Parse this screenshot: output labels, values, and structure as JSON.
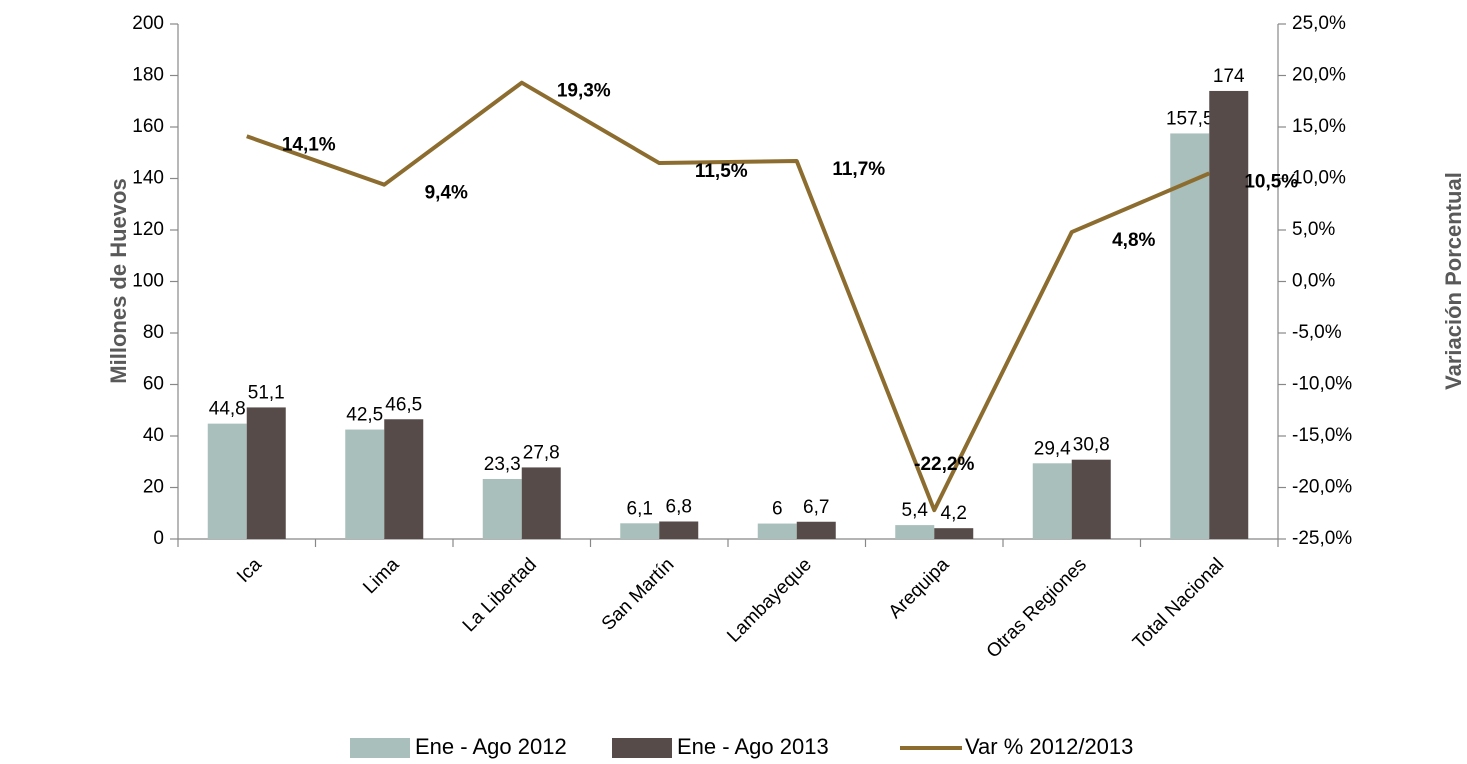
{
  "chart_data": {
    "type": "bar-line",
    "categories": [
      "Ica",
      "Lima",
      "La Libertad",
      "San Martín",
      "Lambayeque",
      "Arequipa",
      "Otras Regiones",
      "Total Nacional"
    ],
    "y_label": "Millones de Huevos",
    "y2_label": "Variación Porcentual",
    "ylim": [
      0,
      200
    ],
    "yticks": [
      0,
      20,
      40,
      60,
      80,
      100,
      120,
      140,
      160,
      180,
      200
    ],
    "y2lim": [
      -25,
      25
    ],
    "y2ticks": [
      {
        "value": -25,
        "label": "-25,0%"
      },
      {
        "value": -20,
        "label": "-20,0%"
      },
      {
        "value": -15,
        "label": "-15,0%"
      },
      {
        "value": -10,
        "label": "-10,0%"
      },
      {
        "value": -5,
        "label": "-5,0%"
      },
      {
        "value": 0,
        "label": "0,0%"
      },
      {
        "value": 5,
        "label": "5,0%"
      },
      {
        "value": 10,
        "label": "10,0%"
      },
      {
        "value": 15,
        "label": "15,0%"
      },
      {
        "value": 20,
        "label": "20,0%"
      },
      {
        "value": 25,
        "label": "25,0%"
      }
    ],
    "series": [
      {
        "name": "Ene - Ago 2012",
        "type": "bar",
        "color": "#a9bfbb",
        "values": [
          44.8,
          42.5,
          23.3,
          6.1,
          6,
          5.4,
          29.4,
          157.5
        ],
        "value_labels": [
          "44,8",
          "42,5",
          "23,3",
          "6,1",
          "6",
          "5,4",
          "29,4",
          "157,5"
        ]
      },
      {
        "name": "Ene - Ago 2013",
        "type": "bar",
        "color": "#564b49",
        "values": [
          51.1,
          46.5,
          27.8,
          6.8,
          6.7,
          4.2,
          30.8,
          174
        ],
        "value_labels": [
          "51,1",
          "46,5",
          "27,8",
          "6,8",
          "6,7",
          "4,2",
          "30,8",
          "174"
        ]
      },
      {
        "name": "Var % 2012/2013",
        "type": "line",
        "axis": "y2",
        "color": "#8c6d2f",
        "values": [
          14.1,
          9.4,
          19.3,
          11.5,
          11.7,
          -22.2,
          4.8,
          10.5
        ],
        "value_labels": [
          "14,1%",
          "9,4%",
          "19,3%",
          "11,5%",
          "11,7%",
          "-22,2%",
          "4,8%",
          "10,5%"
        ]
      }
    ],
    "legend": "bottom"
  }
}
